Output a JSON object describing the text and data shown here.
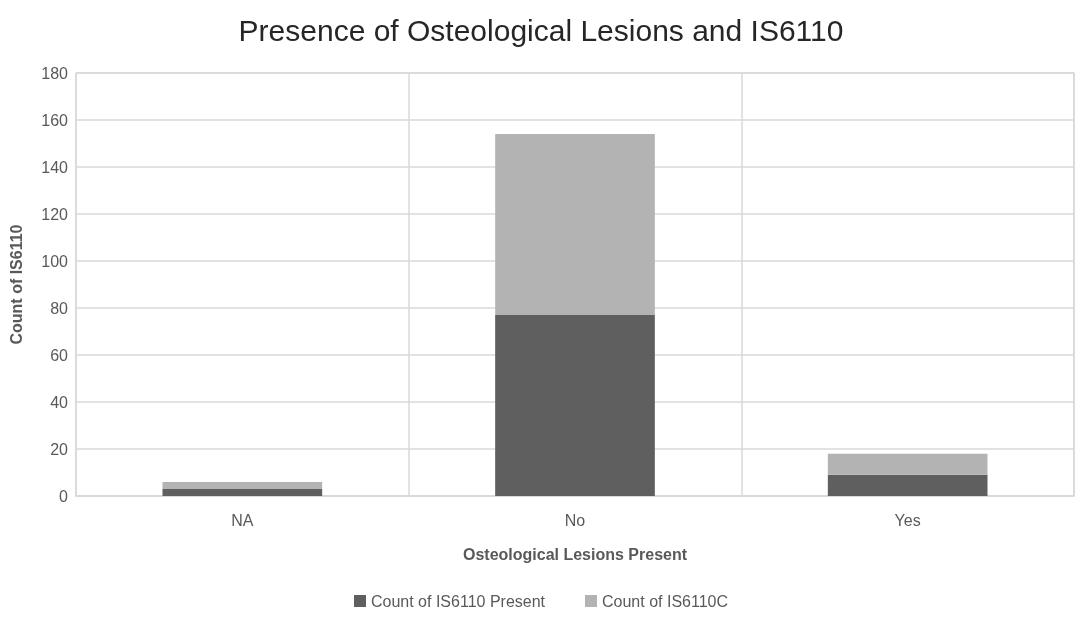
{
  "chart_data": {
    "type": "bar",
    "title": "Presence of Osteological Lesions and IS6110",
    "xlabel": "Osteological Lesions Present",
    "ylabel": "Count of IS6110",
    "categories": [
      "NA",
      "No",
      "Yes"
    ],
    "series": [
      {
        "name": "Count of IS6110 Present",
        "color": "#5f5f5f",
        "values": [
          3,
          77,
          9
        ]
      },
      {
        "name": "Count of IS6110C",
        "color": "#b3b3b3",
        "values": [
          3,
          77,
          9
        ]
      }
    ],
    "stacked": true,
    "ylim": [
      0,
      180
    ],
    "yticks": [
      0,
      20,
      40,
      60,
      80,
      100,
      120,
      140,
      160,
      180
    ],
    "grid": true,
    "legend": "bottom"
  }
}
